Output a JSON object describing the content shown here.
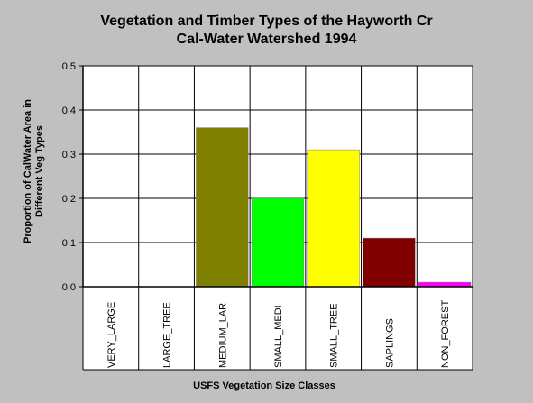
{
  "chart_data": {
    "type": "bar",
    "title_line1": "Vegetation and Timber Types of the Hayworth Cr",
    "title_line2": "Cal-Water Watershed 1994",
    "xlabel": "USFS Vegetation Size Classes",
    "ylabel_line1": "Proportion of CalWater Area in",
    "ylabel_line2": "Different Veg Types",
    "ylim": [
      0,
      0.5
    ],
    "yticks": [
      "0.0",
      "0.1",
      "0.2",
      "0.3",
      "0.4",
      "0.5"
    ],
    "categories": [
      "VERY_LARGE",
      "LARGE_TREE",
      "MEDIUM_LAR",
      "SMALL_MEDI",
      "SMALL_TREE",
      "SAPLINGS",
      "NON_FOREST"
    ],
    "values": [
      0.0,
      0.0,
      0.36,
      0.2,
      0.31,
      0.11,
      0.01
    ],
    "colors": [
      "#808080",
      "#808080",
      "#808000",
      "#00ff00",
      "#ffff00",
      "#800000",
      "#ff00ff"
    ],
    "grid": true
  }
}
